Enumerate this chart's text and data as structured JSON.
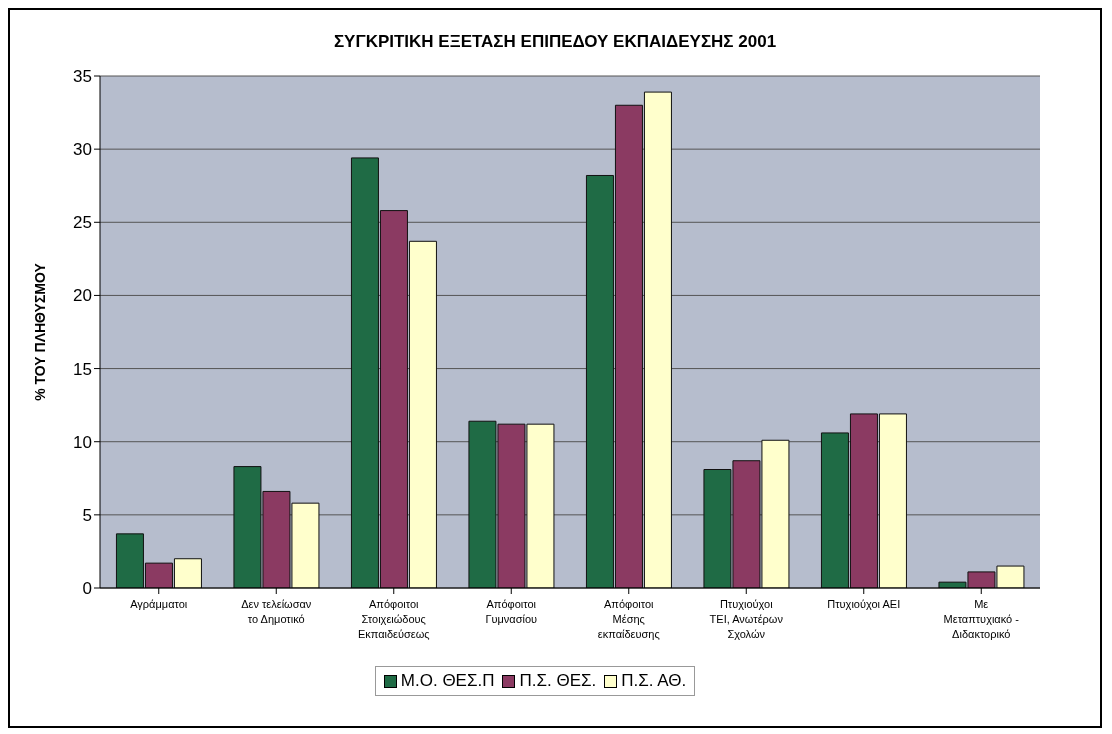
{
  "chart_data": {
    "type": "bar",
    "title": "ΣΥΓΚΡΙΤΙΚΗ ΕΞΕΤΑΣΗ ΕΠΙΠΕΔΟΥ ΕΚΠΑΙΔΕΥΣΗΣ 2001",
    "ylabel": "% ΤΟΥ ΠΛΗΘΥΣΜΟΥ",
    "categories": [
      "Αγράμματοι",
      "Δεν τελείωσαν το Δημοτικό",
      "Απόφοιτοι Στοιχειώδους Εκπαιδεύσεως",
      "Απόφοιτοι Γυμνασίου",
      "Απόφοιτοι Μέσης εκπαίδευσης",
      "Πτυχιούχοι ΤΕΙ, Ανωτέρων Σχολών",
      "Πτυχιούχοι ΑΕΙ",
      "Με Μεταπτυχιακό - Διδακτορικό"
    ],
    "series": [
      {
        "name": "Μ.Ο. ΘΕΣ.Π",
        "color": "#1f6b45",
        "values": [
          3.7,
          8.3,
          29.4,
          11.4,
          28.2,
          8.1,
          10.6,
          0.4
        ]
      },
      {
        "name": "Π.Σ. ΘΕΣ.",
        "color": "#8b3a62",
        "values": [
          1.7,
          6.6,
          25.8,
          11.2,
          33.0,
          8.7,
          11.9,
          1.1
        ]
      },
      {
        "name": "Π.Σ. ΑΘ.",
        "color": "#ffffcc",
        "values": [
          2.0,
          5.8,
          23.7,
          11.2,
          33.9,
          10.1,
          11.9,
          1.5
        ]
      }
    ],
    "ylim": [
      0,
      35
    ],
    "yticks": [
      0,
      5,
      10,
      15,
      20,
      25,
      30,
      35
    ],
    "grid": "y",
    "legend": "bottom"
  }
}
